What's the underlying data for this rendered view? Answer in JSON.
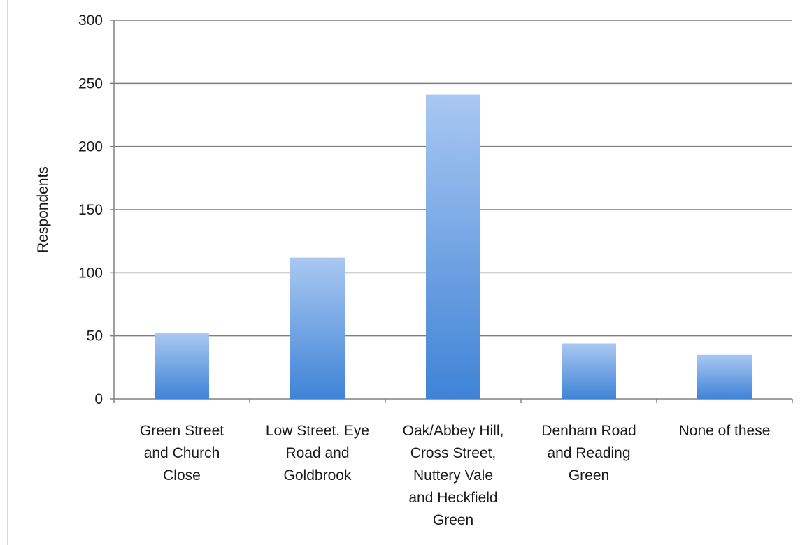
{
  "chart_data": {
    "type": "bar",
    "title": "",
    "xlabel": "",
    "ylabel": "Respondents",
    "ylim": [
      0,
      300
    ],
    "yticks": [
      0,
      50,
      100,
      150,
      200,
      250,
      300
    ],
    "grid": true,
    "legend": "none",
    "categories": [
      "Green Street and Church Close",
      "Low Street, Eye Road and Goldbrook",
      "Oak/Abbey Hill, Cross Street, Nuttery Vale and Heckfield Green",
      "Denham Road and Reading Green",
      "None of these"
    ],
    "category_lines": [
      [
        "Green Street",
        "and Church",
        "Close"
      ],
      [
        "Low Street, Eye",
        "Road and",
        "Goldbrook"
      ],
      [
        "Oak/Abbey Hill,",
        "Cross Street,",
        "Nuttery Vale",
        "and Heckfield",
        "Green"
      ],
      [
        "Denham Road",
        "and Reading",
        "Green"
      ],
      [
        "None of these"
      ]
    ],
    "values": [
      52,
      112,
      241,
      44,
      35
    ],
    "colors": {
      "bar_top": "#a9c8f2",
      "bar_bottom": "#3f83d6",
      "grid": "#7f7f7f",
      "axis": "#808080"
    }
  }
}
